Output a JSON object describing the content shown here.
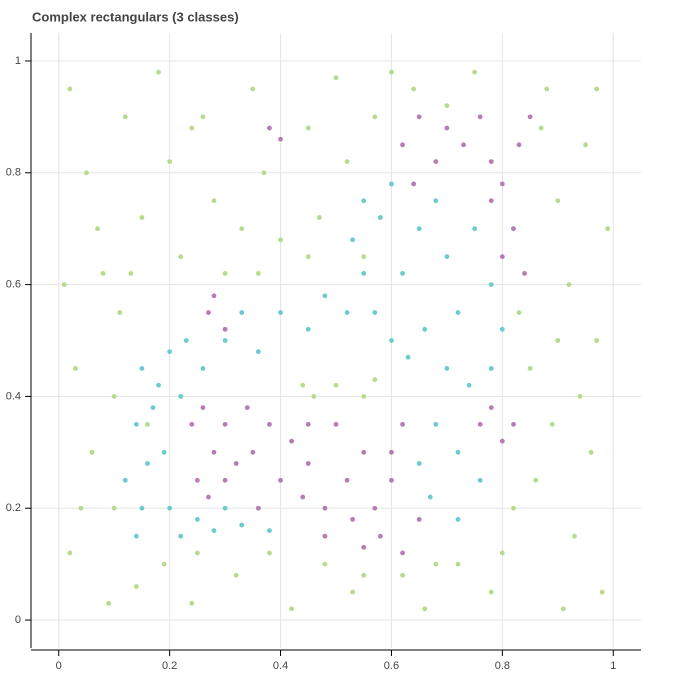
{
  "chart_data": {
    "type": "scatter",
    "title": "Complex rectangulars (3 classes)",
    "xlim": [
      -0.05,
      1.05
    ],
    "ylim": [
      -0.05,
      1.05
    ],
    "xticks": [
      0,
      0.2,
      0.4,
      0.6,
      0.8,
      1
    ],
    "yticks": [
      0,
      0.2,
      0.4,
      0.6,
      0.8,
      1
    ],
    "grid": true,
    "series": [
      {
        "color": "#b7da8b",
        "x": [
          0.02,
          0.05,
          0.08,
          0.03,
          0.06,
          0.02,
          0.09,
          0.12,
          0.15,
          0.11,
          0.1,
          0.14,
          0.18,
          0.2,
          0.22,
          0.19,
          0.24,
          0.26,
          0.28,
          0.3,
          0.32,
          0.35,
          0.37,
          0.4,
          0.36,
          0.42,
          0.45,
          0.47,
          0.46,
          0.48,
          0.5,
          0.52,
          0.55,
          0.53,
          0.57,
          0.57,
          0.55,
          0.62,
          0.64,
          0.66,
          0.7,
          0.72,
          0.75,
          0.78,
          0.8,
          0.83,
          0.85,
          0.86,
          0.88,
          0.9,
          0.92,
          0.89,
          0.93,
          0.95,
          0.97,
          0.96,
          0.98,
          0.99,
          0.94,
          0.07,
          0.04,
          0.16,
          0.13,
          0.25,
          0.38,
          0.45,
          0.44,
          0.5,
          0.9,
          0.82,
          0.87,
          0.6,
          0.68,
          0.55,
          0.1,
          0.01,
          0.91,
          0.97,
          0.33,
          0.24
        ],
        "values": [
          0.95,
          0.8,
          0.62,
          0.45,
          0.3,
          0.12,
          0.03,
          0.9,
          0.72,
          0.55,
          0.2,
          0.06,
          0.98,
          0.82,
          0.65,
          0.1,
          0.03,
          0.9,
          0.75,
          0.62,
          0.08,
          0.95,
          0.8,
          0.68,
          0.62,
          0.02,
          0.88,
          0.72,
          0.4,
          0.1,
          0.97,
          0.82,
          0.65,
          0.05,
          0.9,
          0.43,
          0.4,
          0.08,
          0.95,
          0.02,
          0.92,
          0.1,
          0.98,
          0.05,
          0.12,
          0.55,
          0.45,
          0.25,
          0.95,
          0.75,
          0.6,
          0.35,
          0.15,
          0.85,
          0.5,
          0.3,
          0.05,
          0.7,
          0.4,
          0.7,
          0.2,
          0.35,
          0.62,
          0.12,
          0.12,
          0.65,
          0.42,
          0.42,
          0.5,
          0.2,
          0.88,
          0.98,
          0.1,
          0.08,
          0.4,
          0.6,
          0.02,
          0.95,
          0.7,
          0.88
        ]
      },
      {
        "color": "#6ccbce",
        "x": [
          0.15,
          0.14,
          0.16,
          0.15,
          0.14,
          0.18,
          0.2,
          0.22,
          0.19,
          0.2,
          0.22,
          0.25,
          0.28,
          0.3,
          0.33,
          0.36,
          0.38,
          0.26,
          0.3,
          0.33,
          0.36,
          0.4,
          0.45,
          0.48,
          0.52,
          0.55,
          0.53,
          0.58,
          0.6,
          0.62,
          0.65,
          0.68,
          0.7,
          0.72,
          0.75,
          0.78,
          0.8,
          0.57,
          0.6,
          0.63,
          0.66,
          0.7,
          0.74,
          0.68,
          0.72,
          0.76,
          0.67,
          0.72,
          0.65,
          0.78,
          0.55,
          0.82,
          0.23,
          0.17,
          0.12
        ],
        "values": [
          0.45,
          0.35,
          0.28,
          0.2,
          0.15,
          0.42,
          0.48,
          0.4,
          0.3,
          0.2,
          0.15,
          0.18,
          0.16,
          0.2,
          0.17,
          0.2,
          0.16,
          0.45,
          0.5,
          0.55,
          0.48,
          0.55,
          0.52,
          0.58,
          0.55,
          0.75,
          0.68,
          0.72,
          0.78,
          0.62,
          0.7,
          0.75,
          0.65,
          0.55,
          0.7,
          0.6,
          0.52,
          0.55,
          0.5,
          0.47,
          0.52,
          0.45,
          0.42,
          0.35,
          0.3,
          0.25,
          0.22,
          0.18,
          0.28,
          0.45,
          0.62,
          0.7,
          0.5,
          0.38,
          0.25
        ]
      },
      {
        "color": "#b77cb5",
        "x": [
          0.24,
          0.26,
          0.28,
          0.25,
          0.3,
          0.32,
          0.27,
          0.3,
          0.35,
          0.38,
          0.4,
          0.42,
          0.45,
          0.48,
          0.5,
          0.52,
          0.55,
          0.57,
          0.6,
          0.58,
          0.62,
          0.55,
          0.48,
          0.45,
          0.62,
          0.65,
          0.36,
          0.62,
          0.65,
          0.68,
          0.7,
          0.73,
          0.76,
          0.78,
          0.8,
          0.83,
          0.85,
          0.78,
          0.82,
          0.8,
          0.84,
          0.78,
          0.8,
          0.76,
          0.82,
          0.27,
          0.3,
          0.28,
          0.38,
          0.4,
          0.64,
          0.34,
          0.44,
          0.53,
          0.6
        ],
        "values": [
          0.35,
          0.38,
          0.3,
          0.25,
          0.35,
          0.28,
          0.22,
          0.25,
          0.3,
          0.35,
          0.25,
          0.32,
          0.28,
          0.2,
          0.35,
          0.25,
          0.3,
          0.2,
          0.25,
          0.15,
          0.12,
          0.13,
          0.15,
          0.35,
          0.35,
          0.18,
          0.2,
          0.85,
          0.9,
          0.82,
          0.88,
          0.85,
          0.9,
          0.82,
          0.78,
          0.85,
          0.9,
          0.75,
          0.7,
          0.65,
          0.62,
          0.38,
          0.32,
          0.35,
          0.35,
          0.55,
          0.52,
          0.58,
          0.88,
          0.86,
          0.78,
          0.38,
          0.22,
          0.18,
          0.3
        ]
      }
    ]
  }
}
